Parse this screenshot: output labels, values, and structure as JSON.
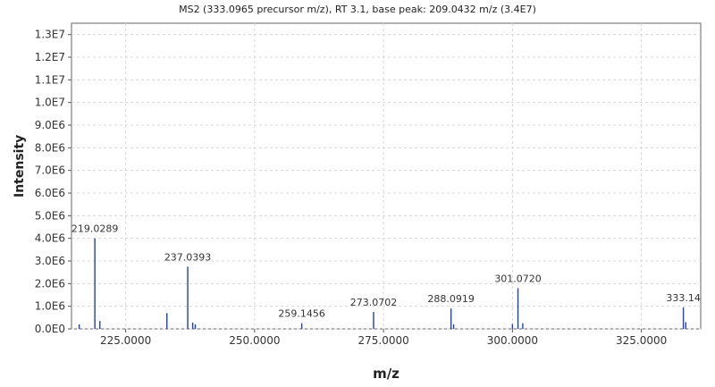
{
  "chart_data": {
    "type": "bar",
    "title": "MS2 (333.0965 precursor m/z), RT 3.1, base peak: 209.0432 m/z (3.4E7)",
    "xlabel": "m/z",
    "ylabel": "Intensity",
    "xlim": [
      214.5,
      336.5
    ],
    "ylim": [
      0,
      13500000
    ],
    "grid": true,
    "series_color": "#1f3fbf",
    "x_ticks": [
      {
        "value": 225,
        "label": "225.0000"
      },
      {
        "value": 250,
        "label": "250.0000"
      },
      {
        "value": 275,
        "label": "275.0000"
      },
      {
        "value": 300,
        "label": "300.0000"
      },
      {
        "value": 325,
        "label": "325.0000"
      }
    ],
    "y_ticks": [
      {
        "value": 0,
        "label": "0.0E0"
      },
      {
        "value": 1000000,
        "label": "1.0E6"
      },
      {
        "value": 2000000,
        "label": "2.0E6"
      },
      {
        "value": 3000000,
        "label": "3.0E6"
      },
      {
        "value": 4000000,
        "label": "4.0E6"
      },
      {
        "value": 5000000,
        "label": "5.0E6"
      },
      {
        "value": 6000000,
        "label": "6.0E6"
      },
      {
        "value": 7000000,
        "label": "7.0E6"
      },
      {
        "value": 8000000,
        "label": "8.0E6"
      },
      {
        "value": 9000000,
        "label": "9.0E6"
      },
      {
        "value": 10000000,
        "label": "1.0E7"
      },
      {
        "value": 11000000,
        "label": "1.1E7"
      },
      {
        "value": 12000000,
        "label": "1.2E7"
      },
      {
        "value": 13000000,
        "label": "1.3E7"
      }
    ],
    "peaks": [
      {
        "mz": 216.0,
        "intensity": 200000
      },
      {
        "mz": 219.0289,
        "intensity": 4000000,
        "label": "219.0289"
      },
      {
        "mz": 220.0,
        "intensity": 350000
      },
      {
        "mz": 233.0,
        "intensity": 700000
      },
      {
        "mz": 237.0393,
        "intensity": 2750000,
        "label": "237.0393"
      },
      {
        "mz": 238.0,
        "intensity": 280000
      },
      {
        "mz": 238.5,
        "intensity": 200000
      },
      {
        "mz": 259.1456,
        "intensity": 250000,
        "label": "259.1456"
      },
      {
        "mz": 273.0702,
        "intensity": 750000,
        "label": "273.0702"
      },
      {
        "mz": 288.0919,
        "intensity": 900000,
        "label": "288.0919"
      },
      {
        "mz": 288.6,
        "intensity": 200000
      },
      {
        "mz": 300.0,
        "intensity": 220000
      },
      {
        "mz": 301.072,
        "intensity": 1800000,
        "label": "301.0720"
      },
      {
        "mz": 302.0,
        "intensity": 250000
      },
      {
        "mz": 333.14,
        "intensity": 950000,
        "label": "333.14"
      },
      {
        "mz": 333.6,
        "intensity": 300000
      }
    ]
  }
}
